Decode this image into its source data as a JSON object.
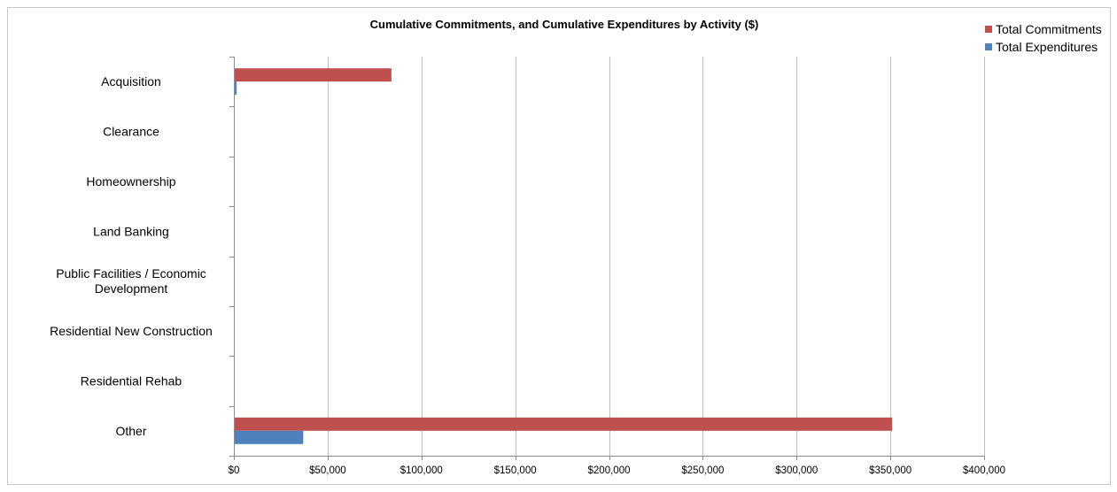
{
  "chart_data": {
    "type": "bar",
    "orientation": "horizontal",
    "title": "Cumulative Commitments, and Cumulative Expenditures by Activity ($)",
    "categories": [
      "Acquisition",
      "Clearance",
      "Homeownership",
      "Land Banking",
      "Public Facilities / Economic Development",
      "Residential New Construction",
      "Residential Rehab",
      "Other"
    ],
    "series": [
      {
        "name": "Total Commitments",
        "color": "#c0504d",
        "values": [
          84000,
          0,
          0,
          0,
          0,
          0,
          0,
          351000
        ]
      },
      {
        "name": "Total Expenditures",
        "color": "#4f81bd",
        "values": [
          1500,
          0,
          0,
          0,
          0,
          0,
          0,
          37000
        ]
      }
    ],
    "xlim": [
      0,
      400000
    ],
    "xticks": [
      0,
      50000,
      100000,
      150000,
      200000,
      250000,
      300000,
      350000,
      400000
    ],
    "xtick_labels": [
      "$0",
      "$50,000",
      "$100,000",
      "$150,000",
      "$200,000",
      "$250,000",
      "$300,000",
      "$350,000",
      "$400,000"
    ],
    "xlabel": "",
    "ylabel": "",
    "grid": "vertical",
    "legend_position": "top-right"
  }
}
